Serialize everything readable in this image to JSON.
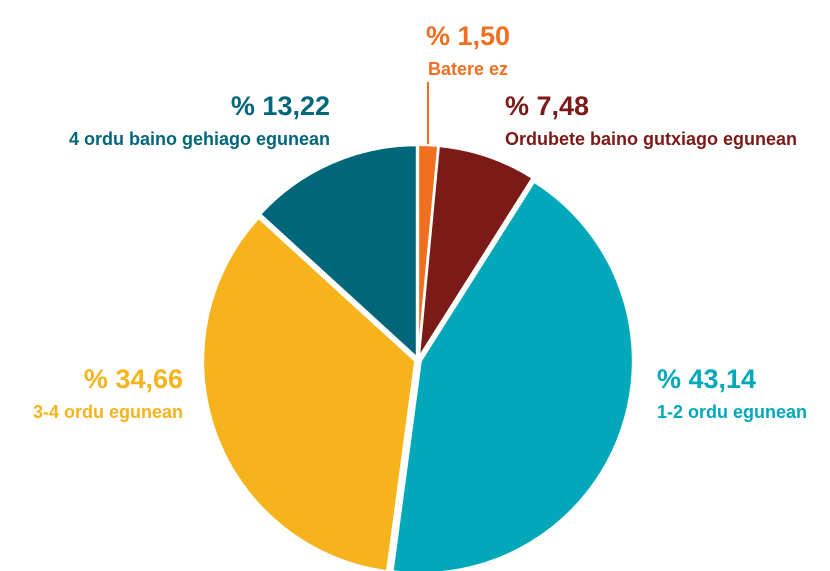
{
  "chart_data": {
    "type": "pie",
    "categories": [
      "Batere ez",
      "Ordubete baino gutxiago egunean",
      "1-2 ordu egunean",
      "3-4 ordu egunean",
      "4 ordu baino gehiago egunean"
    ],
    "values": [
      1.5,
      7.48,
      43.14,
      34.66,
      13.22
    ],
    "value_labels": [
      "% 1,50",
      "% 7,48",
      "% 43,14",
      "% 34,66",
      "% 13,22"
    ],
    "colors": [
      "#f26f21",
      "#7b1a17",
      "#00a8ba",
      "#f7b31b",
      "#00667a"
    ]
  }
}
